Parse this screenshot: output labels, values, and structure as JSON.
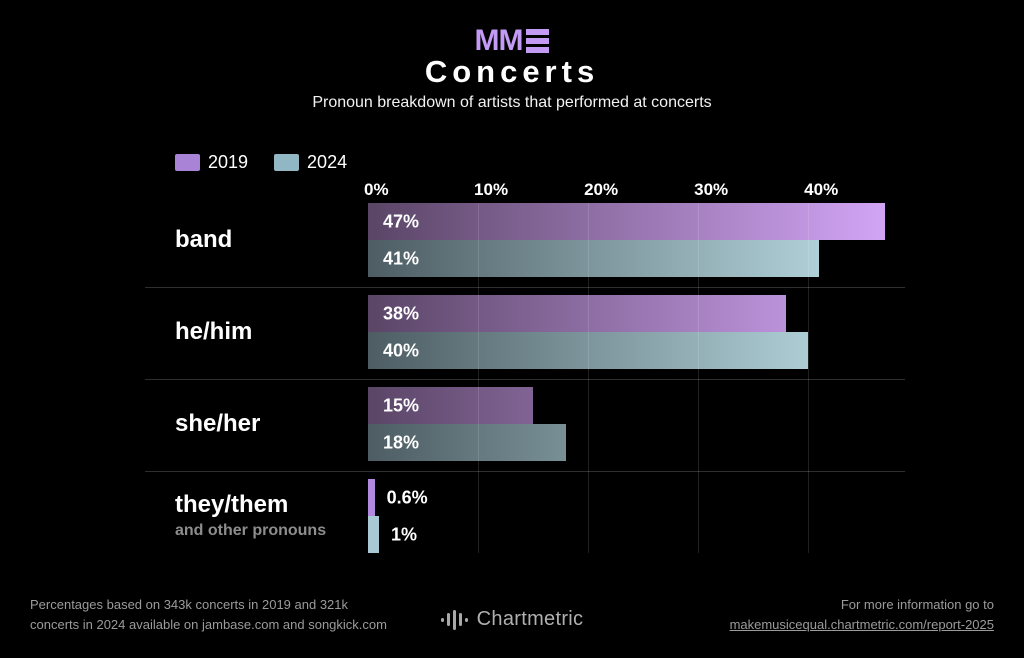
{
  "header": {
    "logo_text": "MM",
    "title": "Concerts",
    "subtitle": "Pronoun breakdown of artists that performed at concerts"
  },
  "legend": [
    {
      "label": "2019",
      "color": "#a983d6"
    },
    {
      "label": "2024",
      "color": "#90b7c3"
    }
  ],
  "chart_data": {
    "type": "bar",
    "orientation": "horizontal",
    "title": "Concerts",
    "subtitle": "Pronoun breakdown of artists that performed at concerts",
    "categories": [
      "band",
      "he/him",
      "she/her",
      "they/them"
    ],
    "category_note": {
      "index": 3,
      "text": "and other pronouns"
    },
    "series": [
      {
        "name": "2019",
        "values": [
          47,
          38,
          15,
          0.6
        ],
        "labels": [
          "47%",
          "38%",
          "15%",
          "0.6%"
        ],
        "gradient": [
          "#5a4566",
          "#d7a8fb"
        ],
        "small_bar_color": "#b289de"
      },
      {
        "name": "2024",
        "values": [
          41,
          40,
          18,
          1
        ],
        "labels": [
          "41%",
          "40%",
          "18%",
          "1%"
        ],
        "gradient": [
          "#4d5d63",
          "#c2e5ed"
        ],
        "small_bar_color": "#a8c9d3"
      }
    ],
    "x_ticks": [
      "0%",
      "10%",
      "20%",
      "30%",
      "40%"
    ],
    "x_tick_values": [
      0,
      10,
      20,
      30,
      40
    ],
    "xlim": [
      0,
      48.8
    ],
    "grid": true,
    "legend_position": "top-left"
  },
  "footer": {
    "source_line1": "Percentages based on 343k concerts in 2019 and 321k",
    "source_line2": "concerts in 2024 available on jambase.com and songkick.com",
    "brand": "Chartmetric",
    "info_line": "For more information go to",
    "info_link": "makemusicequal.chartmetric.com/report-2025"
  },
  "colors": {
    "background": "#000000",
    "brand_purple": "#c39bf4",
    "text_primary": "#ffffff",
    "text_muted": "#9b9b9b",
    "divider": "#2e2e2e"
  }
}
